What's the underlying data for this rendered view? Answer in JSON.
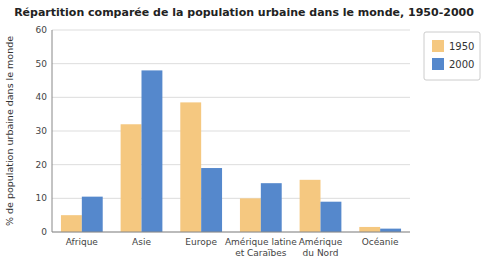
{
  "chart_data": {
    "type": "bar",
    "title": "Répartition comparée de la population urbaine dans le monde, 1950-2000",
    "ylabel": "% de population urbaine dans le monde",
    "categories": [
      "Afrique",
      "Asie",
      "Europe",
      "Amérique latine\net Caraïbes",
      "Amérique\ndu Nord",
      "Océanie"
    ],
    "series": [
      {
        "name": "1950",
        "color": "#f5c880",
        "values": [
          5,
          32,
          38.5,
          10,
          15.5,
          1.5
        ]
      },
      {
        "name": "2000",
        "color": "#5588cc",
        "values": [
          10.5,
          48,
          19,
          14.5,
          9,
          1
        ]
      }
    ],
    "ylim": [
      0,
      60
    ],
    "yticks": [
      0,
      10,
      20,
      30,
      40,
      50,
      60
    ],
    "grid": true,
    "legend": "right"
  }
}
